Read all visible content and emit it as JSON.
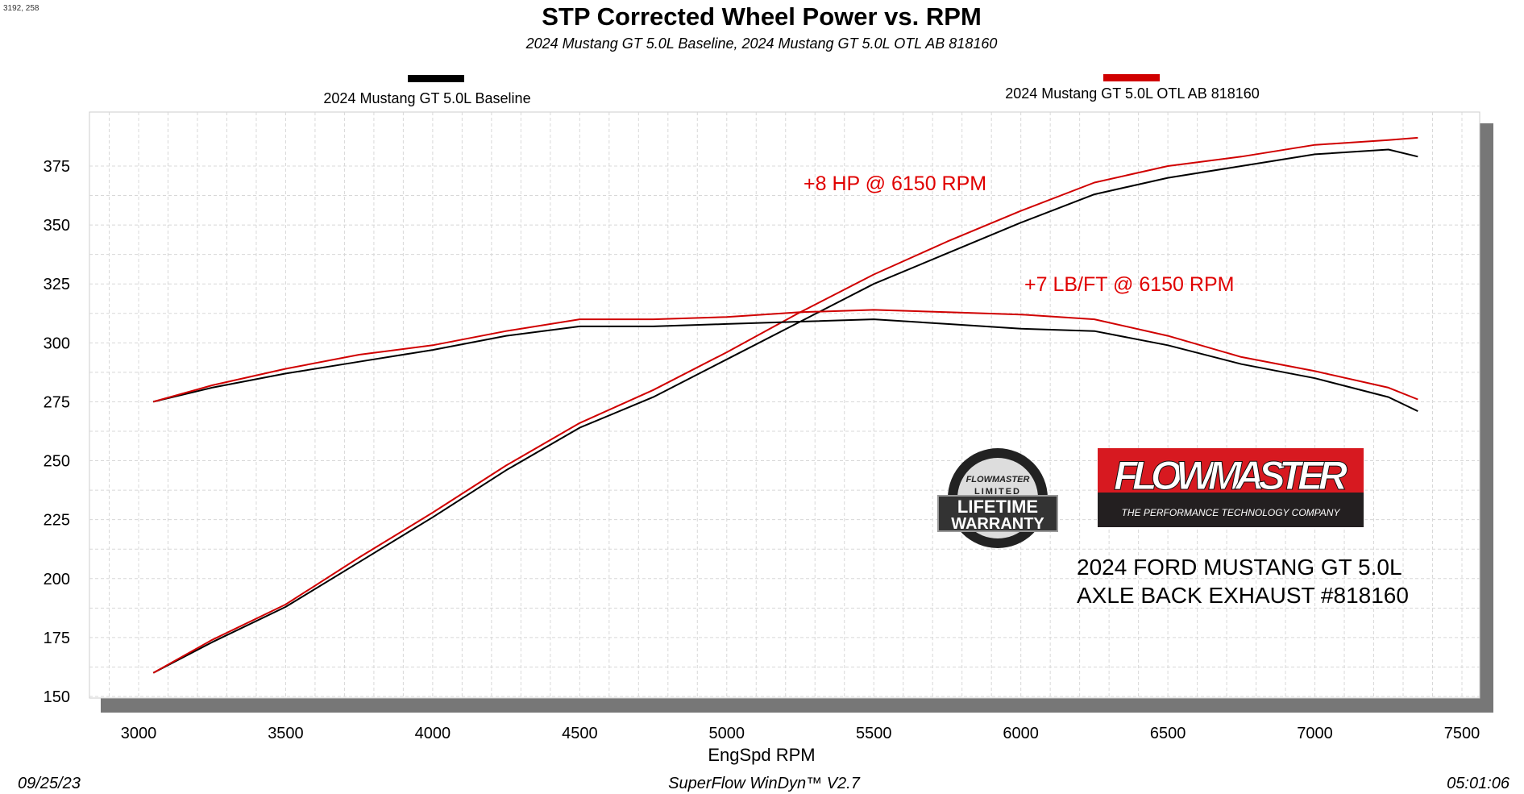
{
  "corner_readout": "3192, 258",
  "footer": {
    "date": "09/25/23",
    "software": "SuperFlow WinDyn™ V2.7",
    "time": "05:01:06"
  },
  "logos": {
    "warranty": "STAINLESS STEEL FLOWMASTER LIMITED LIFETIME WARRANTY",
    "brand": "FLOWMASTER",
    "brand_tagline": "THE PERFORMANCE TECHNOLOGY COMPANY"
  },
  "colors": {
    "baseline": "#000000",
    "otl": "#d00000",
    "annotation": "#e00000",
    "grid": "#d4d4d4",
    "shadow": "#777777"
  },
  "chart_data": {
    "type": "line",
    "title": "STP Corrected Wheel Power vs. RPM",
    "subtitle": "2024 Mustang GT 5.0L Baseline, 2024 Mustang GT 5.0L OTL AB 818160",
    "xlabel": "EngSpd  RPM",
    "ylabel": "",
    "xlim": [
      2850,
      7570
    ],
    "ylim": [
      145,
      386
    ],
    "xticks": [
      3000,
      3500,
      4000,
      4500,
      5000,
      5500,
      6000,
      6500,
      7000,
      7500
    ],
    "yticks": [
      150,
      175,
      200,
      225,
      250,
      275,
      300,
      325,
      350,
      375
    ],
    "grid": true,
    "legend": [
      {
        "name": "2024 Mustang GT 5.0L Baseline",
        "color": "#000000"
      },
      {
        "name": "2024 Mustang GT 5.0L OTL AB 818160",
        "color": "#d00000"
      }
    ],
    "legend_placement": "top",
    "x": [
      3050,
      3250,
      3500,
      3750,
      4000,
      4250,
      4500,
      4750,
      5000,
      5250,
      5500,
      5750,
      6000,
      6250,
      6500,
      6750,
      7000,
      7250,
      7350
    ],
    "series": [
      {
        "legend": 0,
        "quantity": "power",
        "values": [
          160,
          173,
          188,
          207,
          226,
          246,
          264,
          277,
          293,
          309,
          325,
          338,
          351,
          363,
          370,
          375,
          380,
          382,
          379
        ]
      },
      {
        "legend": 1,
        "quantity": "power",
        "values": [
          160,
          174,
          189,
          209,
          228,
          248,
          266,
          280,
          296,
          313,
          329,
          343,
          356,
          368,
          375,
          379,
          384,
          386,
          387
        ]
      },
      {
        "legend": 0,
        "quantity": "torque",
        "values": [
          275,
          281,
          287,
          292,
          297,
          303,
          307,
          307,
          308,
          309,
          310,
          308,
          306,
          305,
          299,
          291,
          285,
          277,
          271
        ]
      },
      {
        "legend": 1,
        "quantity": "torque",
        "values": [
          275,
          282,
          289,
          295,
          299,
          305,
          310,
          310,
          311,
          313,
          314,
          313,
          312,
          310,
          303,
          294,
          288,
          281,
          276
        ]
      }
    ],
    "annotations": [
      {
        "text": "+8 HP @ 6150 RPM",
        "x": 5820,
        "y": 367
      },
      {
        "text": "+7 LB/FT @ 6150 RPM",
        "x": 6030,
        "y": 323
      }
    ],
    "notes": [
      "2024 FORD MUSTANG GT 5.0L",
      "AXLE BACK EXHAUST #818160"
    ]
  }
}
